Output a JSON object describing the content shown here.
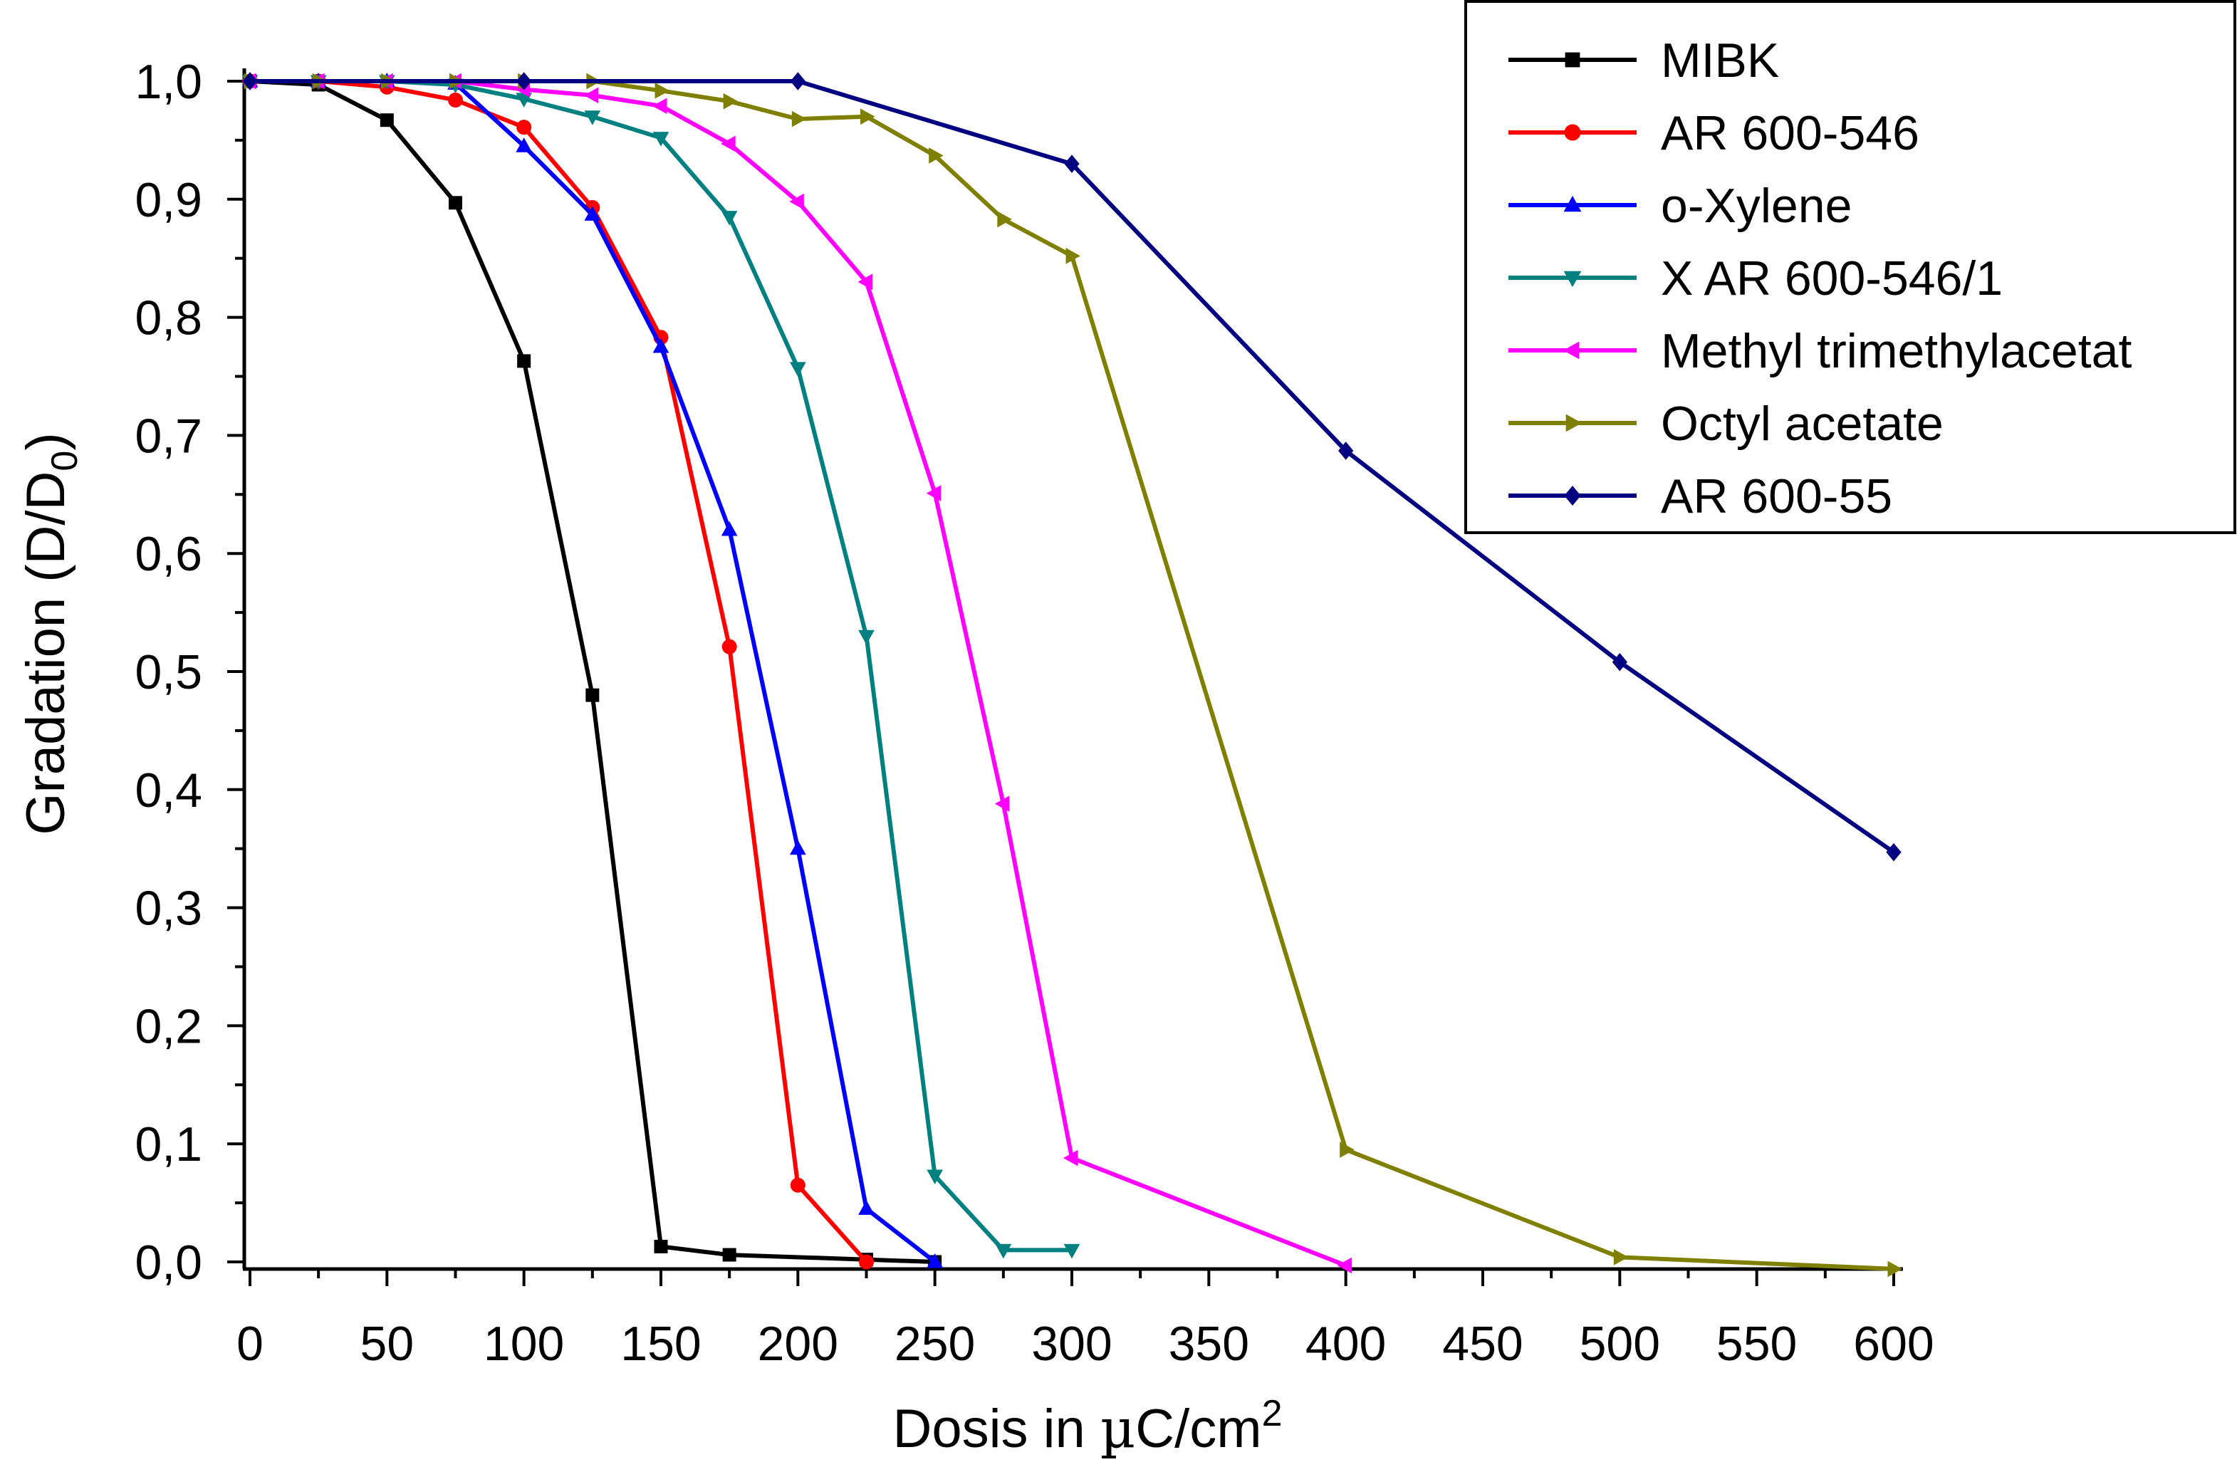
{
  "chart_data": {
    "type": "line",
    "title": "",
    "xlabel": {
      "main": "Dosis in ",
      "mu": "µ",
      "unit": "C/cm",
      "sup": "2"
    },
    "ylabel": {
      "main": "Gradation (D/D",
      "sub": "0",
      "close": ")"
    },
    "xlim": [
      0,
      600
    ],
    "ylim": [
      0,
      1.0
    ],
    "x_ticks": [
      0,
      50,
      100,
      150,
      200,
      250,
      300,
      350,
      400,
      450,
      500,
      550,
      600
    ],
    "x_tick_labels": [
      "0",
      "50",
      "100",
      "150",
      "200",
      "250",
      "300",
      "350",
      "400",
      "450",
      "500",
      "550",
      "600"
    ],
    "y_ticks": [
      0,
      0.1,
      0.2,
      0.3,
      0.4,
      0.5,
      0.6,
      0.7,
      0.8,
      0.9,
      1.0
    ],
    "y_tick_labels": [
      "0,0",
      "0,1",
      "0,2",
      "0,3",
      "0,4",
      "0,5",
      "0,6",
      "0,7",
      "0,8",
      "0,9",
      "1,0"
    ],
    "grid": false,
    "legend_position": "top-right",
    "series": [
      {
        "name": "MIBK",
        "color": "#000000",
        "marker": "square",
        "x": [
          0,
          25,
          50,
          75,
          100,
          125,
          150,
          175,
          225,
          250
        ],
        "y": [
          1.0,
          0.997,
          0.967,
          0.897,
          0.763,
          0.48,
          0.013,
          0.006,
          0.002,
          0.0
        ]
      },
      {
        "name": "AR 600-546",
        "color": "#ff0000",
        "marker": "circle",
        "x": [
          0,
          25,
          50,
          75,
          100,
          125,
          150,
          175,
          200,
          225
        ],
        "y": [
          1.0,
          1.0,
          0.995,
          0.984,
          0.961,
          0.893,
          0.783,
          0.521,
          0.065,
          0.0
        ]
      },
      {
        "name": "o-Xylene",
        "color": "#0000ff",
        "marker": "triangle-up",
        "x": [
          0,
          25,
          50,
          75,
          100,
          125,
          150,
          175,
          200,
          225,
          250
        ],
        "y": [
          1.0,
          1.0,
          1.0,
          0.998,
          0.945,
          0.887,
          0.775,
          0.62,
          0.35,
          0.045,
          0.0
        ]
      },
      {
        "name": "X AR 600-546/1",
        "color": "#008080",
        "marker": "triangle-down",
        "x": [
          0,
          25,
          50,
          75,
          100,
          125,
          150,
          175,
          200,
          225,
          250,
          275,
          300
        ],
        "y": [
          1.0,
          1.0,
          1.0,
          0.997,
          0.985,
          0.97,
          0.952,
          0.885,
          0.757,
          0.53,
          0.073,
          0.01,
          0.01
        ]
      },
      {
        "name": "Methyl trimethylacetat",
        "color": "#ff00ff",
        "marker": "triangle-left",
        "x": [
          0,
          25,
          50,
          75,
          100,
          125,
          150,
          175,
          200,
          225,
          250,
          275,
          300,
          400
        ],
        "y": [
          1.0,
          1.0,
          1.0,
          1.0,
          0.993,
          0.988,
          0.979,
          0.947,
          0.898,
          0.83,
          0.651,
          0.388,
          0.088,
          -0.003
        ]
      },
      {
        "name": "Octyl acetate",
        "color": "#808000",
        "marker": "triangle-right",
        "x": [
          0,
          25,
          50,
          75,
          100,
          125,
          150,
          175,
          200,
          225,
          250,
          275,
          300,
          400,
          500,
          600
        ],
        "y": [
          1.0,
          1.0,
          1.0,
          1.0,
          1.0,
          1.0,
          0.992,
          0.983,
          0.968,
          0.97,
          0.937,
          0.883,
          0.852,
          0.095,
          0.004,
          -0.006
        ]
      },
      {
        "name": "AR 600-55",
        "color": "#000080",
        "marker": "diamond",
        "x": [
          0,
          100,
          200,
          300,
          400,
          500,
          600
        ],
        "y": [
          1.0,
          1.0,
          1.0,
          0.93,
          0.687,
          0.508,
          0.347
        ]
      }
    ]
  }
}
